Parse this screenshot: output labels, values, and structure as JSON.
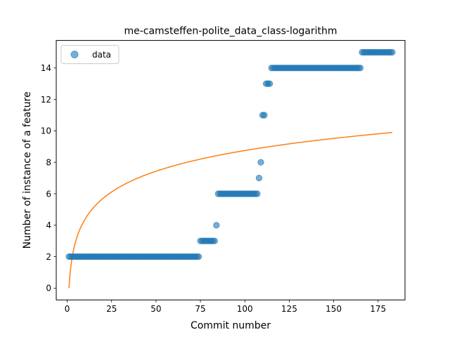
{
  "chart_data": {
    "type": "scatter",
    "title": "me-camsteffen-polite_data_class-logarithm",
    "xlabel": "Commit number",
    "ylabel": "Number of instance of a feature",
    "xlim": [
      -6.15,
      190.15
    ],
    "ylim": [
      -0.75,
      15.75
    ],
    "xticks": [
      0,
      25,
      50,
      75,
      100,
      125,
      150,
      175
    ],
    "yticks": [
      0,
      2,
      4,
      6,
      8,
      10,
      12,
      14
    ],
    "grid": false,
    "legend": {
      "location": "upper left",
      "entries": [
        "data"
      ]
    },
    "series": [
      {
        "name": "data",
        "kind": "scatter",
        "color": "#1f77b4",
        "alpha": 0.6,
        "segments": [
          {
            "x_start": 1,
            "x_end": 74,
            "y": 2
          },
          {
            "x_start": 75,
            "x_end": 83,
            "y": 3
          },
          {
            "x_start": 84,
            "x_end": 84,
            "y": 4
          },
          {
            "x_start": 85,
            "x_end": 107,
            "y": 6
          },
          {
            "x_start": 108,
            "x_end": 108,
            "y": 7
          },
          {
            "x_start": 109,
            "x_end": 109,
            "y": 8
          },
          {
            "x_start": 110,
            "x_end": 111,
            "y": 11
          },
          {
            "x_start": 112,
            "x_end": 114,
            "y": 13
          },
          {
            "x_start": 115,
            "x_end": 165,
            "y": 14
          },
          {
            "x_start": 166,
            "x_end": 183,
            "y": 15
          }
        ]
      },
      {
        "kind": "line",
        "color": "#ff7f0e",
        "description": "fitted logarithmic curve y = a*ln(x)",
        "a": 1.9,
        "x_start": 1,
        "x_end": 183
      }
    ]
  }
}
